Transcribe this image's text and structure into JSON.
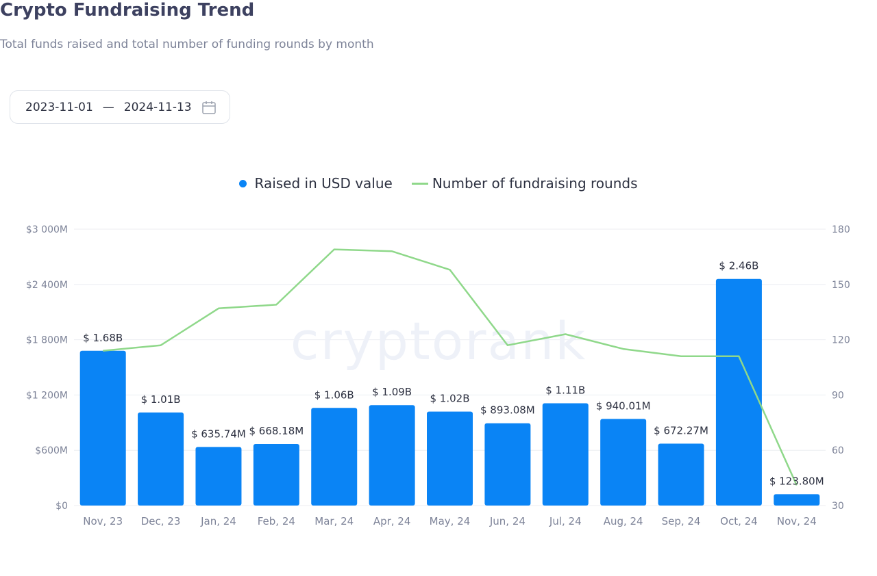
{
  "header": {
    "title": "Crypto Fundraising Trend",
    "subtitle": "Total funds raised and total number of funding rounds by month"
  },
  "date_range": {
    "start": "2023-11-01",
    "separator": "—",
    "end": "2024-11-13",
    "icon": "calendar-icon"
  },
  "watermark": "cryptorank",
  "colors": {
    "bar": "#0a84f5",
    "line": "#8fd88a",
    "grid": "#eceef2",
    "axis_text": "#7d8398",
    "label_text": "#2c3040"
  },
  "chart_data": {
    "type": "bar",
    "categories": [
      "Nov, 23",
      "Dec, 23",
      "Jan, 24",
      "Feb, 24",
      "Mar, 24",
      "Apr, 24",
      "May, 24",
      "Jun, 24",
      "Jul, 24",
      "Aug, 24",
      "Sep, 24",
      "Oct, 24",
      "Nov, 24"
    ],
    "series": [
      {
        "name": "Raised in USD value",
        "type": "bar",
        "axis": "left",
        "values": [
          1680,
          1010,
          635.74,
          668.18,
          1060,
          1090,
          1020,
          893.08,
          1110,
          940.01,
          672.27,
          2460,
          123.8
        ],
        "labels": [
          "$ 1.68B",
          "$ 1.01B",
          "$ 635.74M",
          "$ 668.18M",
          "$ 1.06B",
          "$ 1.09B",
          "$ 1.02B",
          "$ 893.08M",
          "$ 1.11B",
          "$ 940.01M",
          "$ 672.27M",
          "$ 2.46B",
          "$ 123.80M"
        ]
      },
      {
        "name": "Number of fundraising rounds",
        "type": "line",
        "axis": "right",
        "values": [
          114,
          117,
          137,
          139,
          169,
          168,
          158,
          117,
          123,
          115,
          111,
          111,
          41
        ]
      }
    ],
    "y_left": {
      "min": 0,
      "max": 3000,
      "ticks": [
        0,
        600,
        1200,
        1800,
        2400,
        3000
      ],
      "tick_labels": [
        "$0",
        "$600M",
        "$1 200M",
        "$1 800M",
        "$2 400M",
        "$3 000M"
      ]
    },
    "y_right": {
      "min": 30,
      "max": 180,
      "ticks": [
        30,
        60,
        90,
        120,
        150,
        180
      ],
      "tick_labels": [
        "30",
        "60",
        "90",
        "120",
        "150",
        "180"
      ]
    },
    "grid": true,
    "legend_position": "top-center"
  }
}
